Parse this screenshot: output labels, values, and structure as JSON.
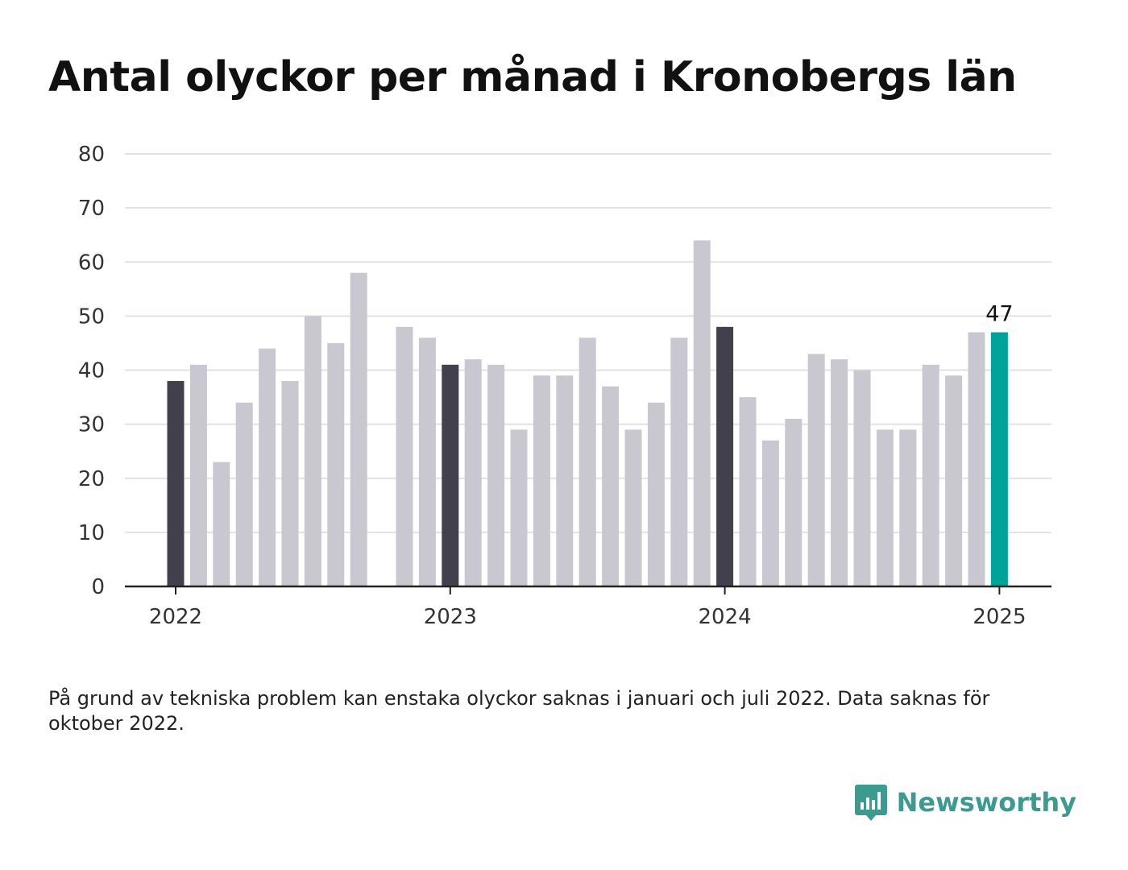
{
  "title": "Antal olyckor per månad i Kronobergs län",
  "footnote": "På grund av tekniska problem kan enstaka olyckor saknas i januari och juli 2022. Data saknas för oktober 2022.",
  "brand": {
    "name": "Newsworthy",
    "logo_icon": "newsworthy-bar-chart-icon",
    "color": "#3c9a90"
  },
  "colors": {
    "bar_default": "#c9c8d0",
    "bar_january": "#42404d",
    "bar_latest": "#00a399",
    "grid": "#e2e2e6",
    "axis": "#222222"
  },
  "chart_data": {
    "type": "bar",
    "title": "Antal olyckor per månad i Kronobergs län",
    "xlabel": "",
    "ylabel": "",
    "ylim": [
      0,
      80
    ],
    "yticks": [
      "0",
      "10",
      "20",
      "30",
      "40",
      "50",
      "60",
      "70",
      "80"
    ],
    "xticks": [
      "2022",
      "2023",
      "2024",
      "2025"
    ],
    "grid": true,
    "legend": "none",
    "categories": [
      "2022-01",
      "2022-02",
      "2022-03",
      "2022-04",
      "2022-05",
      "2022-06",
      "2022-07",
      "2022-08",
      "2022-09",
      "2022-10",
      "2022-11",
      "2022-12",
      "2023-01",
      "2023-02",
      "2023-03",
      "2023-04",
      "2023-05",
      "2023-06",
      "2023-07",
      "2023-08",
      "2023-09",
      "2023-10",
      "2023-11",
      "2023-12",
      "2024-01",
      "2024-02",
      "2024-03",
      "2024-04",
      "2024-05",
      "2024-06",
      "2024-07",
      "2024-08",
      "2024-09",
      "2024-10",
      "2024-11",
      "2024-12",
      "2025-01"
    ],
    "values": [
      38,
      41,
      23,
      34,
      44,
      38,
      50,
      45,
      58,
      null,
      48,
      46,
      41,
      42,
      41,
      29,
      39,
      39,
      46,
      37,
      29,
      34,
      46,
      64,
      48,
      35,
      27,
      31,
      43,
      42,
      40,
      29,
      29,
      41,
      39,
      47,
      47
    ],
    "highlighted_months": [
      "2022-01",
      "2023-01",
      "2024-01"
    ],
    "latest_value_label": "47"
  }
}
